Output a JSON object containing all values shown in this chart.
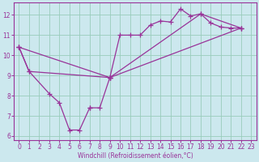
{
  "xlabel": "Windchill (Refroidissement éolien,°C)",
  "bg_color": "#cce8ee",
  "line_color": "#993399",
  "grid_color": "#99ccbb",
  "xlim": [
    -0.5,
    23.5
  ],
  "ylim": [
    5.8,
    12.6
  ],
  "xticks": [
    0,
    1,
    2,
    3,
    4,
    5,
    6,
    7,
    8,
    9,
    10,
    11,
    12,
    13,
    14,
    15,
    16,
    17,
    18,
    19,
    20,
    21,
    22,
    23
  ],
  "yticks": [
    6,
    7,
    8,
    9,
    10,
    11,
    12
  ],
  "series": [
    {
      "x": [
        0,
        1,
        3,
        4,
        5,
        6,
        7,
        7,
        8,
        9
      ],
      "y": [
        10.4,
        9.2,
        8.1,
        7.65,
        6.3,
        6.3,
        7.4,
        7.4,
        7.4,
        8.9
      ]
    },
    {
      "x": [
        9,
        10,
        11,
        12,
        13,
        14,
        15,
        16,
        17,
        18,
        19,
        20,
        21,
        22
      ],
      "y": [
        8.9,
        11.0,
        11.0,
        11.0,
        11.5,
        11.7,
        11.65,
        12.3,
        11.95,
        12.05,
        11.6,
        11.4,
        11.35,
        11.35
      ]
    },
    {
      "x": [
        0,
        1,
        9,
        18,
        22
      ],
      "y": [
        10.4,
        9.2,
        8.9,
        12.05,
        11.35
      ]
    },
    {
      "x": [
        0,
        9,
        22
      ],
      "y": [
        10.4,
        8.9,
        11.35
      ]
    }
  ]
}
